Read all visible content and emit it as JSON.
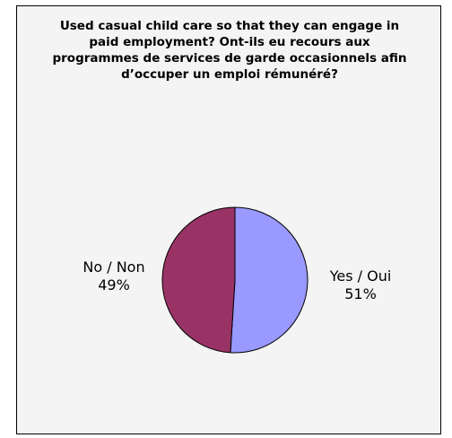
{
  "chart_data": {
    "type": "pie",
    "title": "Used casual child care so that they can engage in paid employment? Ont-ils eu recours aux programmes de services de garde occasionnels afin d’occuper un emploi rémunéré?",
    "slices": [
      {
        "label": "Yes / Oui",
        "value": 51,
        "value_label": "51%",
        "color": "#9999ff"
      },
      {
        "label": "No / Non",
        "value": 49,
        "value_label": "49%",
        "color": "#993366"
      }
    ],
    "start_at": "top",
    "direction": "clockwise",
    "legend": "none"
  },
  "colors": {
    "plot_background": "#f4f4f4",
    "border": "#000000",
    "slice_edge": "#000000"
  }
}
